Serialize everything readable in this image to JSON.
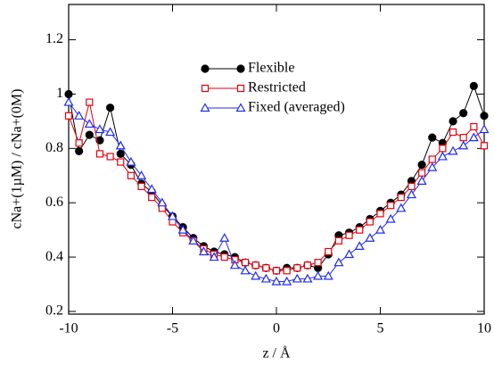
{
  "chart_data": {
    "type": "line",
    "x_label": "z / Å",
    "y_label": "cNa+(1µM) / cNa+(0M)",
    "x": [
      -10,
      -9.5,
      -9,
      -8.5,
      -8,
      -7.5,
      -7,
      -6.5,
      -6,
      -5.5,
      -5,
      -4.5,
      -4,
      -3.5,
      -3,
      -2.5,
      -2,
      -1.5,
      -1,
      -0.5,
      0,
      0.5,
      1,
      1.5,
      2,
      2.5,
      3,
      3.5,
      4,
      4.5,
      5,
      5.5,
      6,
      6.5,
      7,
      7.5,
      8,
      8.5,
      9,
      9.5,
      10
    ],
    "series": [
      {
        "name": "Flexible",
        "color": "#000000",
        "marker": "circle",
        "values": [
          1.0,
          0.79,
          0.85,
          0.83,
          0.95,
          0.78,
          0.74,
          0.67,
          0.64,
          0.59,
          0.55,
          0.51,
          0.47,
          0.44,
          0.42,
          0.41,
          0.4,
          0.38,
          0.37,
          0.36,
          0.35,
          0.36,
          0.36,
          0.37,
          0.36,
          0.41,
          0.48,
          0.49,
          0.51,
          0.54,
          0.57,
          0.6,
          0.63,
          0.68,
          0.74,
          0.84,
          0.82,
          0.9,
          0.93,
          1.03,
          0.92
        ]
      },
      {
        "name": "Restricted",
        "color": "#e8000b",
        "marker": "square",
        "values": [
          0.92,
          0.82,
          0.97,
          0.78,
          0.77,
          0.75,
          0.7,
          0.66,
          0.62,
          0.58,
          0.53,
          0.49,
          0.46,
          0.43,
          0.41,
          0.4,
          0.39,
          0.38,
          0.37,
          0.36,
          0.35,
          0.35,
          0.36,
          0.37,
          0.38,
          0.42,
          0.46,
          0.48,
          0.5,
          0.53,
          0.56,
          0.59,
          0.62,
          0.66,
          0.71,
          0.76,
          0.8,
          0.86,
          0.84,
          0.88,
          0.81
        ]
      },
      {
        "name": "Fixed (averaged)",
        "color": "#1f2cf0",
        "marker": "triangle",
        "values": [
          0.97,
          0.92,
          0.89,
          0.87,
          0.86,
          0.81,
          0.75,
          0.7,
          0.65,
          0.6,
          0.55,
          0.5,
          0.46,
          0.42,
          0.4,
          0.47,
          0.37,
          0.35,
          0.33,
          0.32,
          0.31,
          0.31,
          0.32,
          0.32,
          0.33,
          0.33,
          0.38,
          0.41,
          0.44,
          0.47,
          0.5,
          0.54,
          0.58,
          0.63,
          0.68,
          0.73,
          0.77,
          0.79,
          0.81,
          0.84,
          0.87
        ]
      }
    ],
    "xlim": [
      -10,
      10
    ],
    "xticks": [
      -10,
      -5,
      0,
      5,
      10
    ],
    "ylim": [
      0.19,
      1.33
    ],
    "yticks": [
      0.2,
      0.4,
      0.6,
      0.8,
      1,
      1.2
    ],
    "legend": "upper center"
  }
}
